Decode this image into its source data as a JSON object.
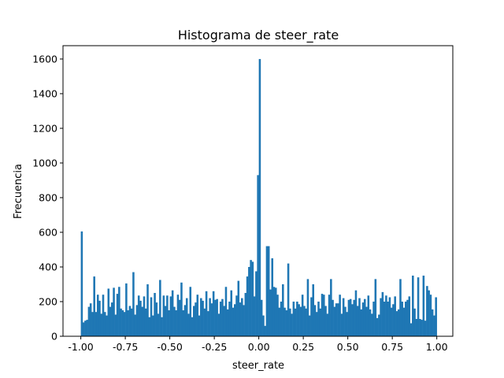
{
  "chart_data": {
    "type": "bar",
    "title": "Histograma de steer_rate",
    "xlabel": "steer_rate",
    "ylabel": "Frecuencia",
    "bin_start": -1.0,
    "bin_width": 0.01,
    "values": [
      605,
      80,
      90,
      95,
      170,
      190,
      140,
      345,
      140,
      240,
      205,
      130,
      240,
      140,
      120,
      275,
      170,
      195,
      280,
      125,
      245,
      285,
      160,
      150,
      140,
      305,
      150,
      175,
      160,
      370,
      125,
      180,
      235,
      205,
      170,
      230,
      160,
      300,
      110,
      225,
      120,
      250,
      195,
      130,
      325,
      110,
      235,
      175,
      235,
      150,
      230,
      265,
      170,
      150,
      240,
      210,
      310,
      150,
      180,
      220,
      130,
      285,
      110,
      175,
      195,
      240,
      120,
      220,
      205,
      160,
      260,
      145,
      220,
      190,
      260,
      210,
      215,
      130,
      200,
      215,
      175,
      285,
      155,
      200,
      265,
      165,
      185,
      235,
      320,
      195,
      220,
      180,
      250,
      345,
      400,
      440,
      430,
      230,
      375,
      930,
      1600,
      210,
      120,
      60,
      520,
      520,
      270,
      450,
      285,
      280,
      240,
      165,
      200,
      300,
      165,
      150,
      420,
      160,
      130,
      200,
      160,
      200,
      185,
      170,
      240,
      175,
      160,
      330,
      120,
      225,
      300,
      180,
      140,
      200,
      160,
      245,
      240,
      175,
      130,
      240,
      330,
      210,
      170,
      190,
      190,
      240,
      130,
      220,
      170,
      140,
      210,
      215,
      185,
      210,
      265,
      175,
      220,
      155,
      195,
      215,
      170,
      235,
      155,
      130,
      200,
      330,
      105,
      125,
      220,
      255,
      200,
      235,
      200,
      225,
      165,
      185,
      230,
      145,
      155,
      330,
      200,
      165,
      200,
      210,
      230,
      75,
      350,
      160,
      100,
      340,
      100,
      95,
      350,
      90,
      290,
      265,
      240,
      155,
      120,
      225
    ],
    "xlim": [
      -1.1,
      1.09
    ],
    "ylim": [
      0,
      1677
    ],
    "xticks": [
      "-1.00",
      "-0.75",
      "-0.50",
      "-0.25",
      "0.00",
      "0.25",
      "0.50",
      "0.75",
      "1.00"
    ],
    "xtick_values": [
      -1,
      -0.75,
      -0.5,
      -0.25,
      0,
      0.25,
      0.5,
      0.75,
      1
    ],
    "yticks": [
      "0",
      "200",
      "400",
      "600",
      "800",
      "1000",
      "1200",
      "1400",
      "1600"
    ],
    "ytick_values": [
      0,
      200,
      400,
      600,
      800,
      1000,
      1200,
      1400,
      1600
    ],
    "bar_color": "#1f77b4",
    "grid": false
  }
}
